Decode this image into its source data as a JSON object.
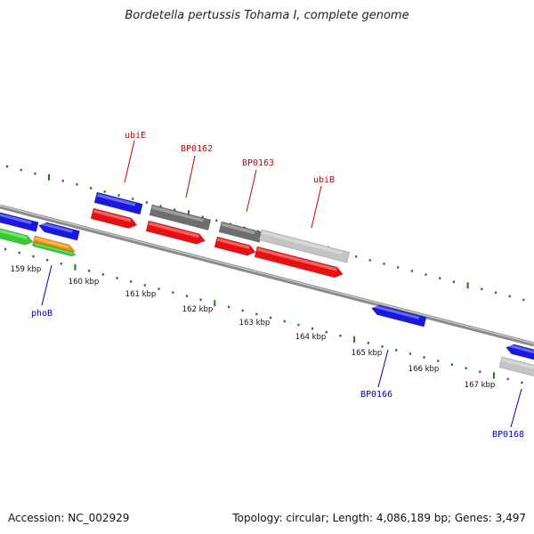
{
  "title": "Bordetella pertussis Tohama I, complete genome",
  "footer": {
    "accession": "Accession: NC_002929",
    "topology": "Topology: circular; Length: 4,086,189 bp; Genes: 3,497"
  },
  "colors": {
    "backbone": "#8a8a8a",
    "tick": "#1a7a1a",
    "forward_gene_label": "#cc0000",
    "reverse_gene_label": "#0000bb",
    "red_feature": "#e81010",
    "blue_feature": "#1818e0",
    "dark_gray_feature": "#6e6e6e",
    "light_gray_feature": "#c4c4c4",
    "green_feature": "#33cc33",
    "orange_feature": "#f08c00"
  },
  "position_labels": [
    "159 kbp",
    "160 kbp",
    "161 kbp",
    "162 kbp",
    "163 kbp",
    "164 kbp",
    "165 kbp",
    "166 kbp",
    "167 kbp"
  ],
  "gene_labels": [
    {
      "text": "ubiE",
      "strand": "forward"
    },
    {
      "text": "BP0162",
      "strand": "forward"
    },
    {
      "text": "BP0163",
      "strand": "forward"
    },
    {
      "text": "ubiB",
      "strand": "forward"
    },
    {
      "text": "phoB",
      "strand": "reverse"
    },
    {
      "text": "BP0166",
      "strand": "reverse"
    },
    {
      "text": "BP0168",
      "strand": "reverse"
    }
  ]
}
